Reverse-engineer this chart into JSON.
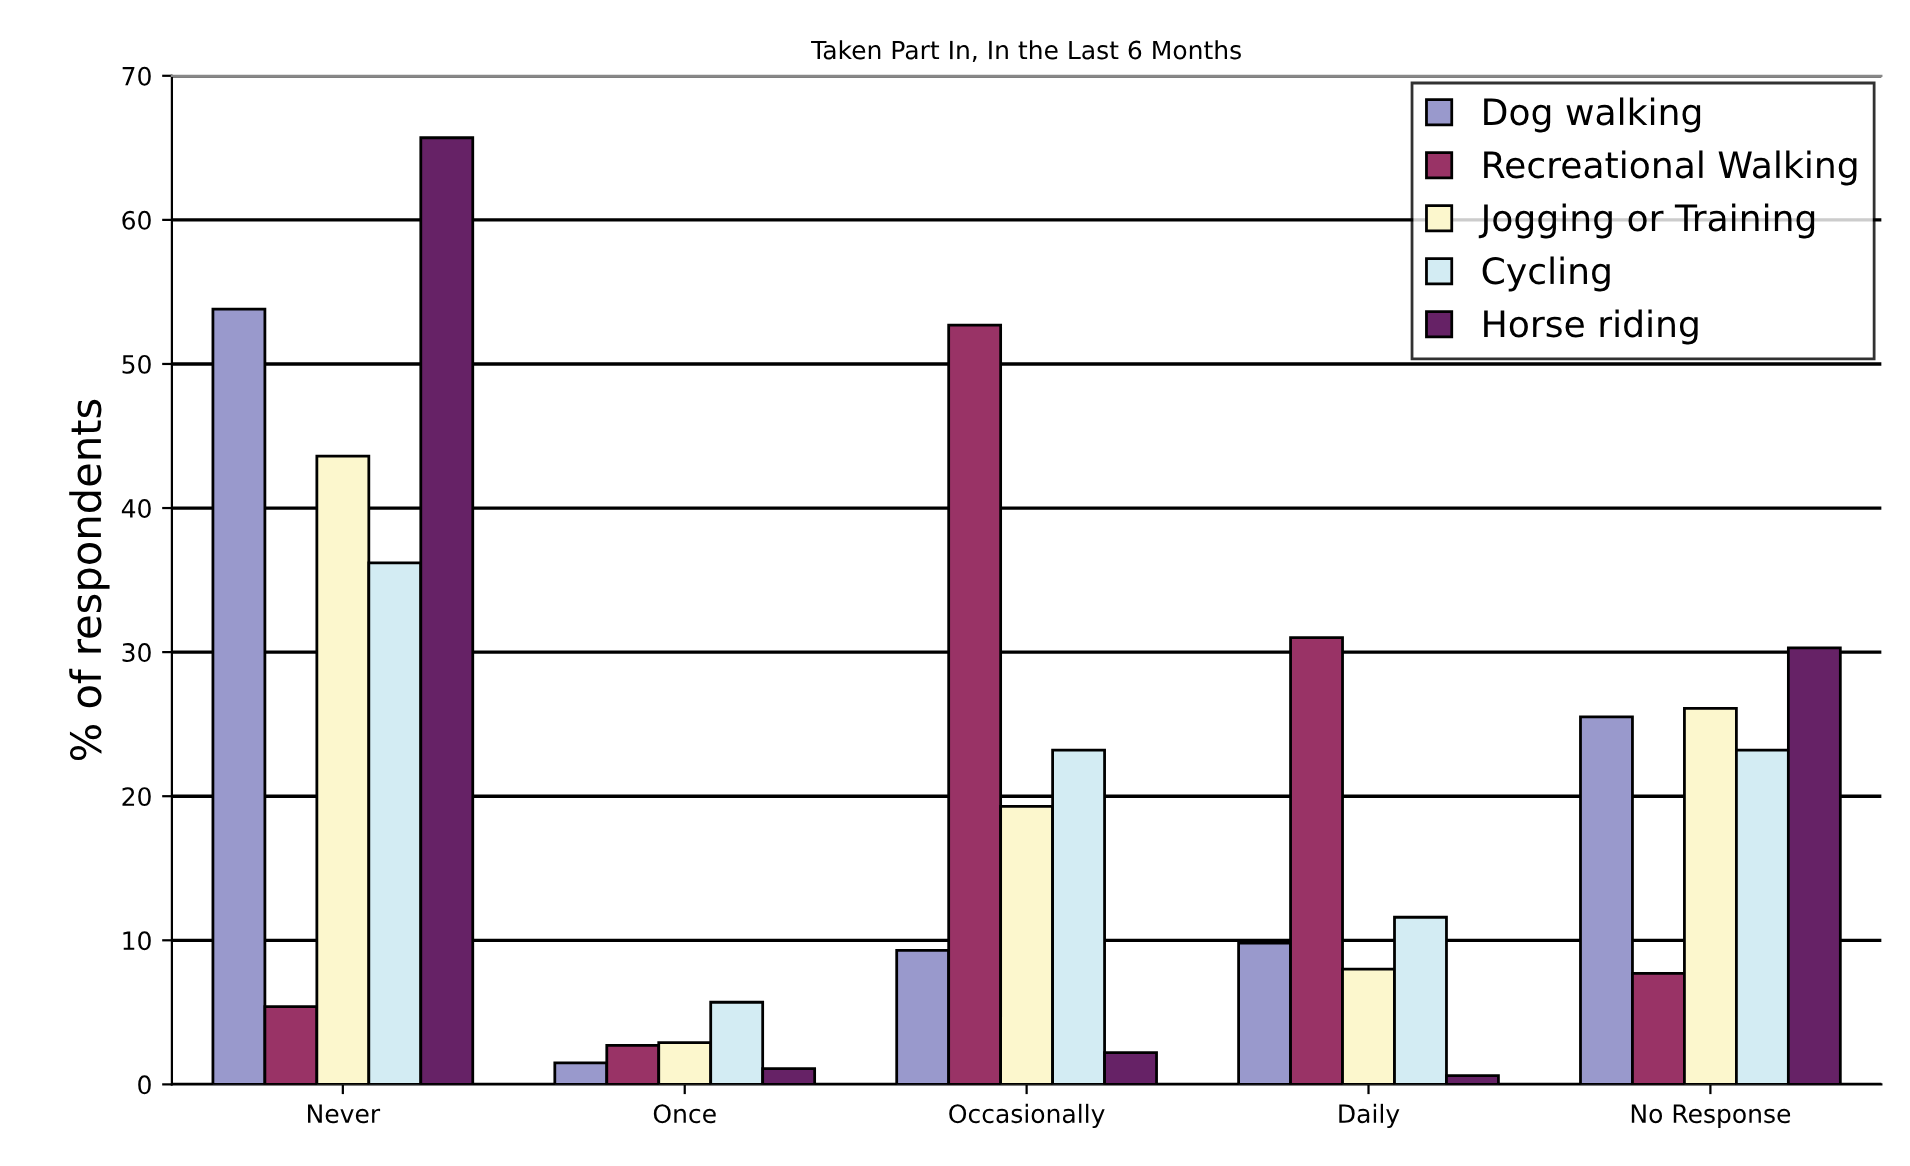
{
  "chart_data": {
    "type": "bar",
    "title": "Taken Part In, In the Last 6 Months",
    "ylabel": "% of respondents",
    "categories": [
      "Never",
      "Once",
      "Occasionally",
      "Daily",
      "No Response"
    ],
    "series": [
      {
        "name": "Dog walking",
        "color": "#9999cc",
        "values": [
          53.8,
          1.5,
          9.3,
          9.8,
          25.5
        ]
      },
      {
        "name": "Recreational Walking",
        "color": "#993366",
        "values": [
          5.4,
          2.7,
          52.7,
          31.0,
          7.7
        ]
      },
      {
        "name": "Jogging or Training",
        "color": "#fcf7cd",
        "values": [
          43.6,
          2.9,
          19.3,
          8.0,
          26.1
        ]
      },
      {
        "name": "Cycling",
        "color": "#d3ecf3",
        "values": [
          36.2,
          5.7,
          23.2,
          11.6,
          23.2
        ]
      },
      {
        "name": "Horse riding",
        "color": "#662266",
        "values": [
          65.7,
          1.1,
          2.2,
          0.6,
          30.3
        ]
      }
    ],
    "ylim": [
      0,
      70
    ],
    "yticks": [
      0,
      10,
      20,
      30,
      40,
      50,
      60,
      70
    ],
    "grid": "y",
    "legend": "top right"
  }
}
